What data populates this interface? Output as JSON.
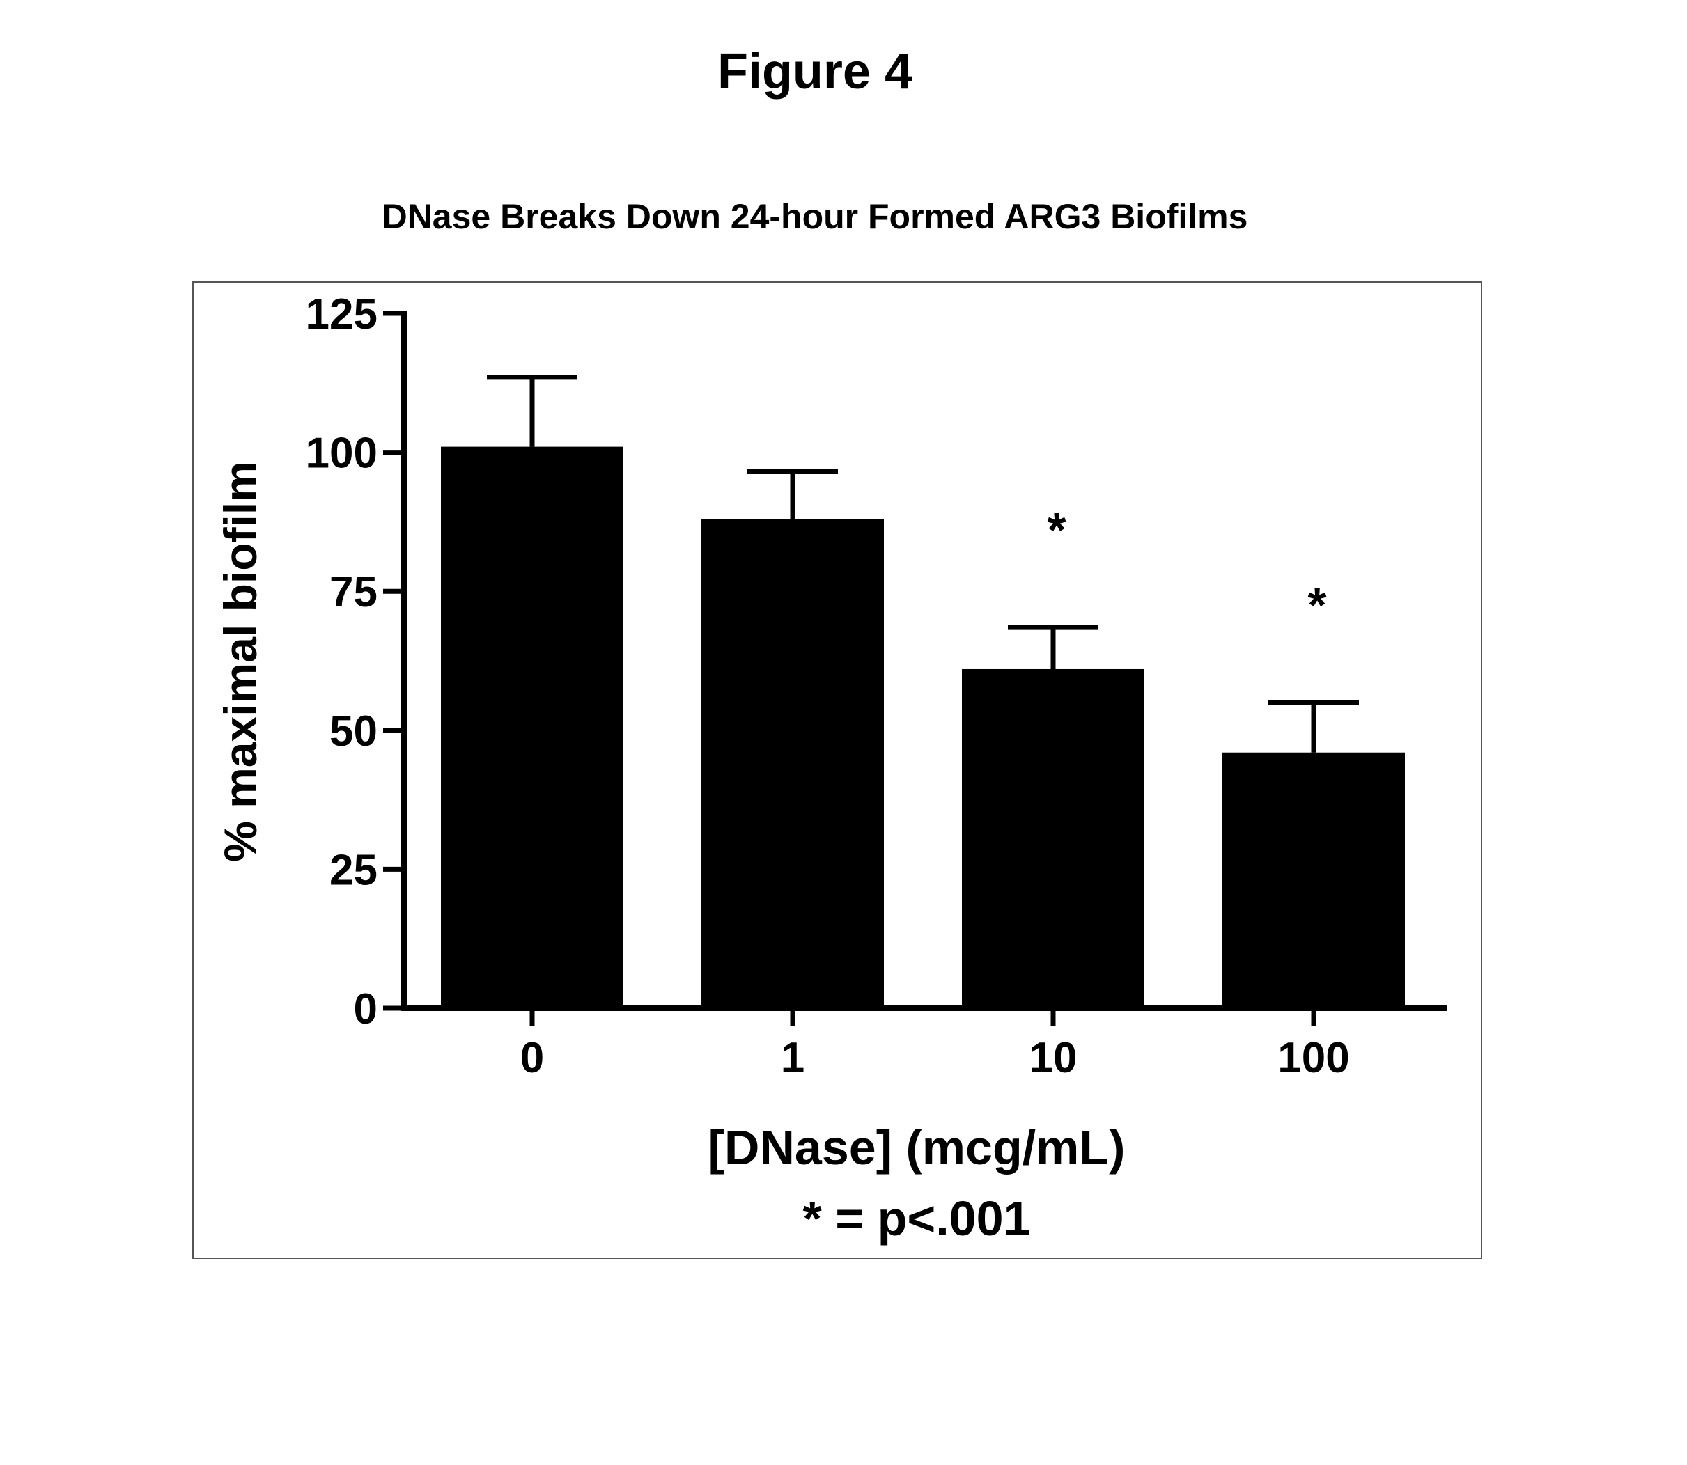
{
  "figure": {
    "label": "Figure 4"
  },
  "chart_data": {
    "type": "bar",
    "title": "DNase Breaks Down 24-hour Formed ARG3 Biofilms",
    "xlabel": "[DNase] (mcg/mL)",
    "ylabel": "% maximal biofilm",
    "categories": [
      "0",
      "1",
      "10",
      "100"
    ],
    "values": [
      101,
      88,
      61,
      46
    ],
    "error_upper": [
      12.5,
      8.5,
      7.5,
      9
    ],
    "significance_markers": [
      "",
      "",
      "*",
      "*"
    ],
    "ylim": [
      0,
      125
    ],
    "yticks": [
      "0",
      "25",
      "50",
      "75",
      "100",
      "125"
    ],
    "footnote": "* = p<.001",
    "bar_color": "#000000",
    "grid": false,
    "legend": "none"
  }
}
